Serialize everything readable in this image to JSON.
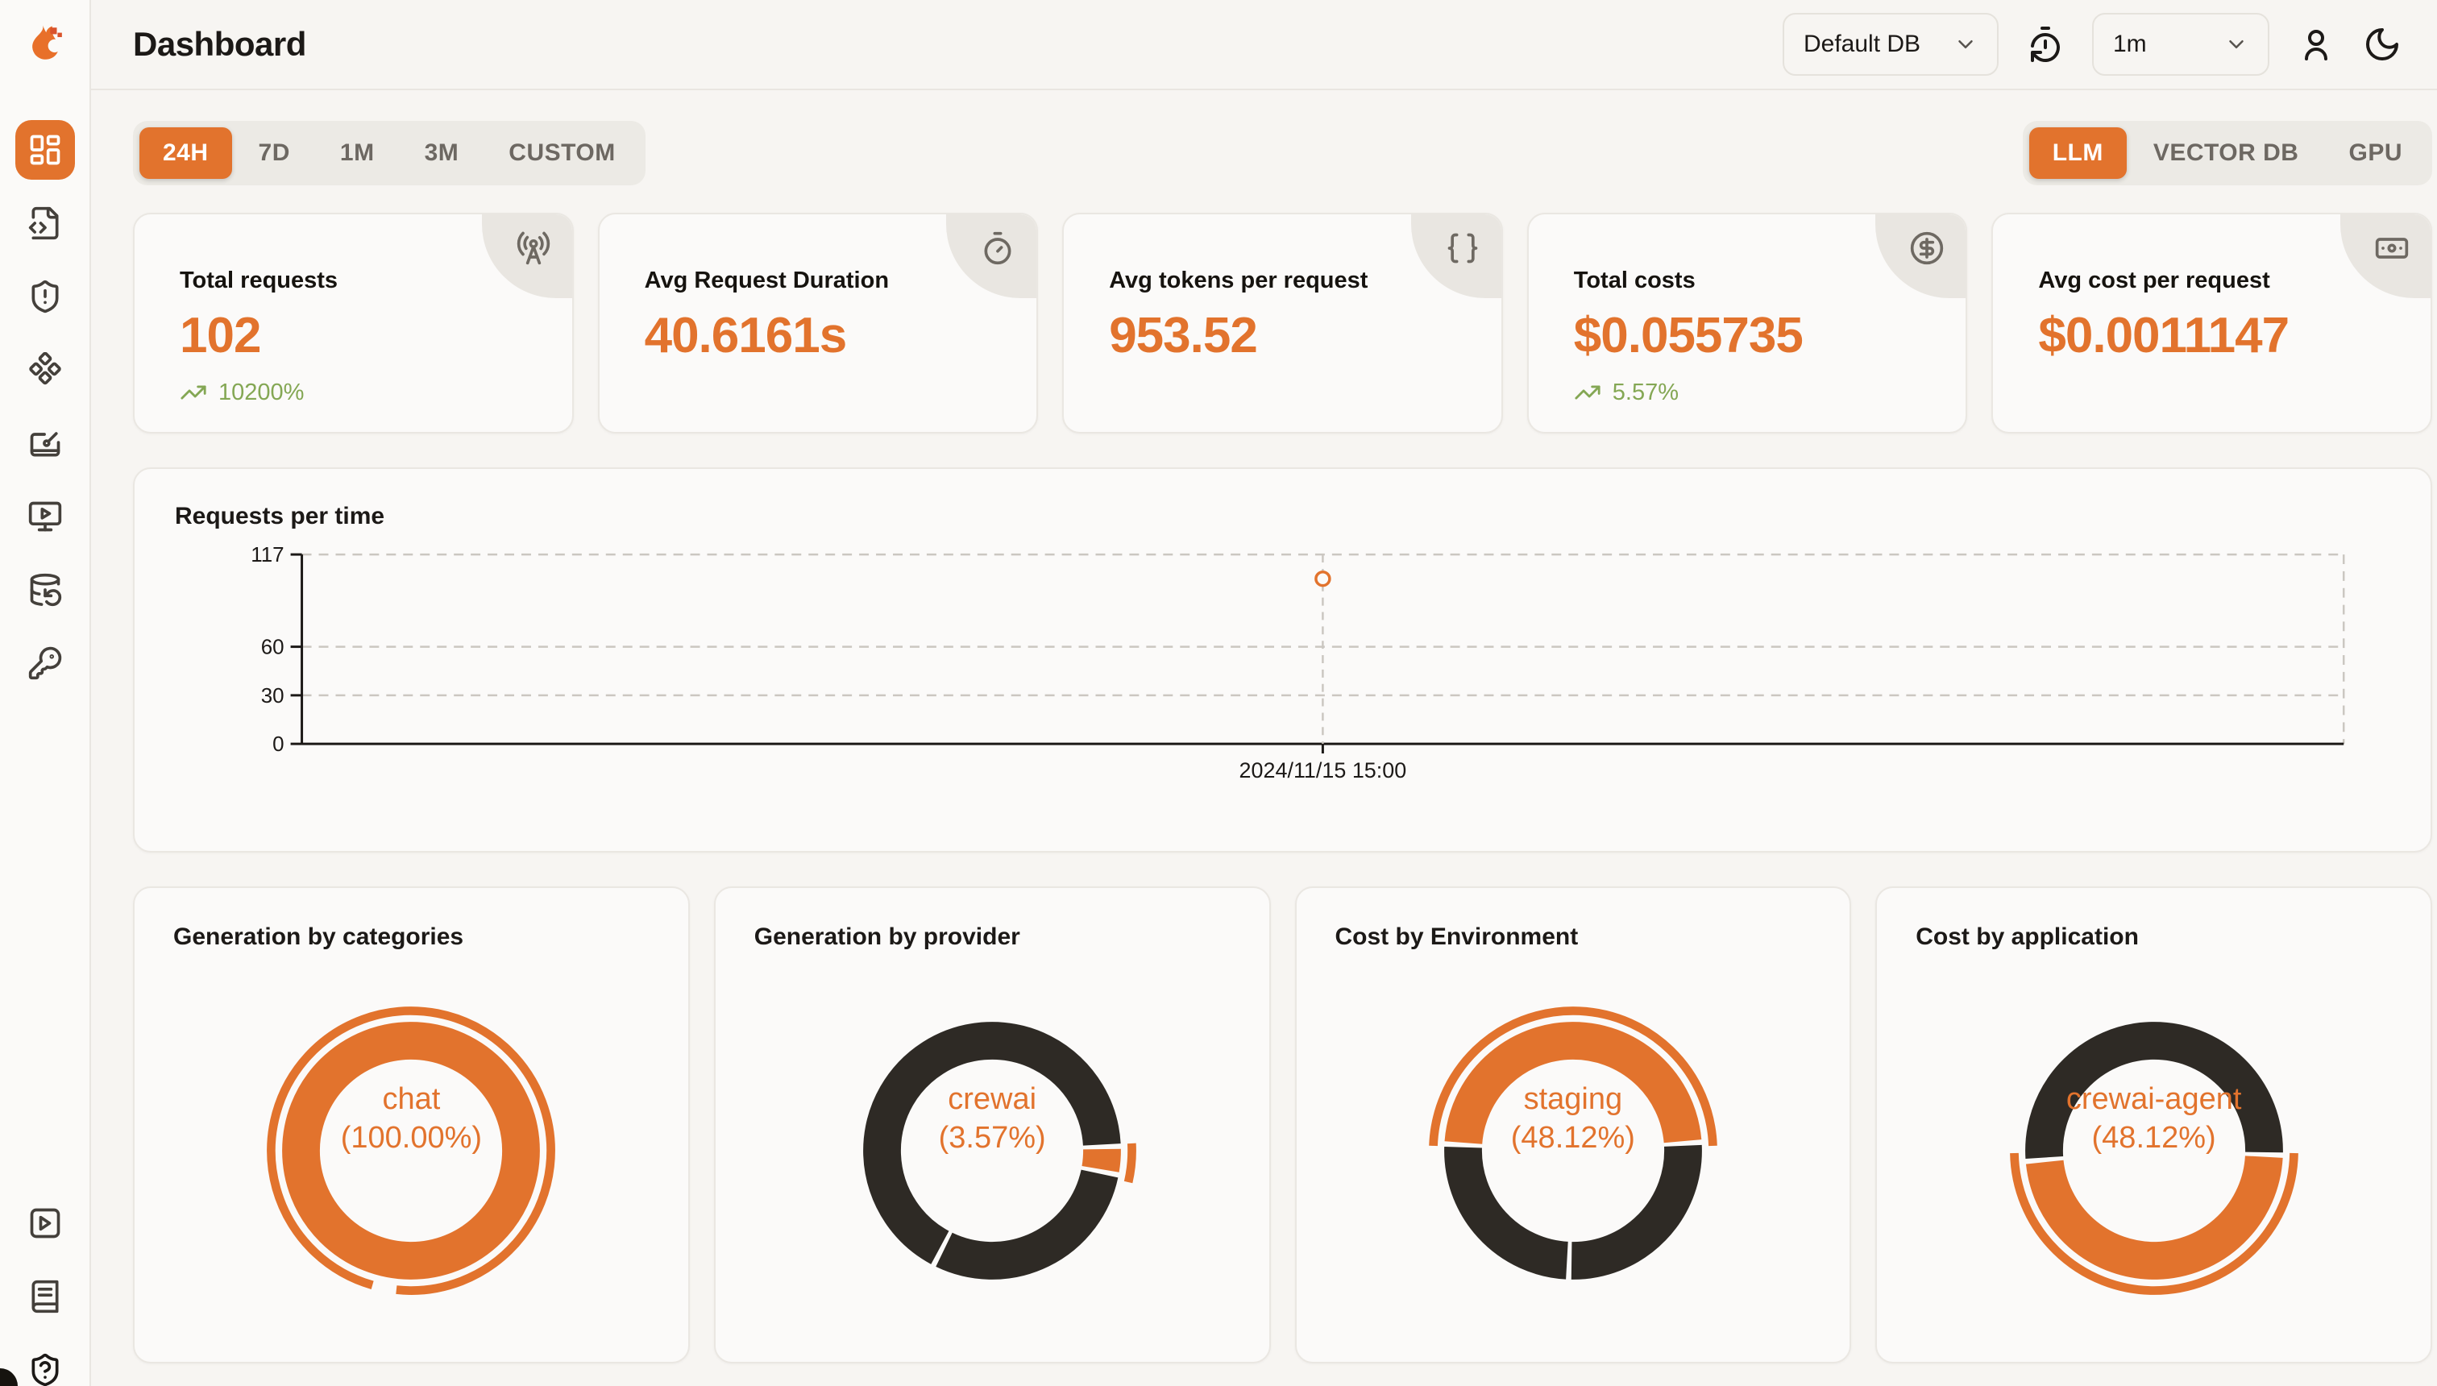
{
  "header": {
    "title": "Dashboard"
  },
  "topbar": {
    "db_select": {
      "value": "Default DB"
    },
    "interval_select": {
      "value": "1m"
    }
  },
  "time_tabs": {
    "items": [
      "24H",
      "7D",
      "1M",
      "3M",
      "CUSTOM"
    ],
    "active": "24H"
  },
  "mode_tabs": {
    "items": [
      "LLM",
      "VECTOR DB",
      "GPU"
    ],
    "active": "LLM"
  },
  "metrics": [
    {
      "label": "Total requests",
      "value": "102",
      "delta": "10200%",
      "icon": "radio-tower"
    },
    {
      "label": "Avg Request Duration",
      "value": "40.6161s",
      "icon": "timer"
    },
    {
      "label": "Avg tokens per request",
      "value": "953.52",
      "icon": "braces"
    },
    {
      "label": "Total costs",
      "value": "$0.055735",
      "delta": "5.57%",
      "icon": "circle-dollar-sign"
    },
    {
      "label": "Avg cost per request",
      "value": "$0.0011147",
      "icon": "banknote"
    }
  ],
  "chart_data": [
    {
      "type": "line",
      "title": "Requests per time",
      "xlabel": "",
      "ylabel": "",
      "ylim": [
        0,
        117
      ],
      "yticks": [
        0,
        30,
        60,
        117
      ],
      "grid": "dashed-horizontal",
      "point_style": "open-circle",
      "points": [
        {
          "x_label": "2024/11/15 15:00",
          "x_frac": 0.5,
          "y": 102
        }
      ]
    },
    {
      "type": "pie",
      "title": "Generation by categories",
      "center_label_line1": "chat",
      "center_label_line2": "(100.00%)",
      "rotation": 0,
      "slices": [
        {
          "label": "chat",
          "pct": 100,
          "color": "orange",
          "highlighted": true
        }
      ],
      "highlight_arc": {
        "start": 196,
        "span": 350
      }
    },
    {
      "type": "pie",
      "title": "Generation by provider",
      "center_label_line1": "crewai",
      "center_label_line2": "(3.57%)",
      "rotation": 88,
      "slices": [
        {
          "label": "crewai",
          "pct": 3.57,
          "color": "orange",
          "highlighted": true
        },
        {
          "label": "",
          "pct": 29.5,
          "color": "dark"
        },
        {
          "label": "",
          "pct": 66.93,
          "color": "dark"
        }
      ],
      "highlight_arc": {
        "start": 87,
        "span": 16
      }
    },
    {
      "type": "pie",
      "title": "Cost by Environment",
      "center_label_line1": "staging",
      "center_label_line2": "(48.12%)",
      "rotation": 273,
      "slices": [
        {
          "label": "staging",
          "pct": 48.12,
          "color": "orange",
          "highlighted": true
        },
        {
          "label": "",
          "pct": 26.6,
          "color": "dark"
        },
        {
          "label": "",
          "pct": 25.28,
          "color": "dark"
        }
      ],
      "highlight_arc": {
        "start": 272,
        "span": 176
      }
    },
    {
      "type": "pie",
      "title": "Cost by application",
      "center_label_line1": "crewai-agent",
      "center_label_line2": "(48.12%)",
      "rotation": 92,
      "slices": [
        {
          "label": "crewai-agent",
          "pct": 48.12,
          "color": "orange",
          "highlighted": true
        },
        {
          "label": "",
          "pct": 51.88,
          "color": "dark"
        }
      ],
      "highlight_arc": {
        "start": 91,
        "span": 178
      }
    }
  ],
  "colors": {
    "accent": "#e2732d",
    "accent_deep": "#d9532b",
    "dark_slice": "#2e2a25",
    "green": "#84a754",
    "grid": "#cbc7c1",
    "axis": "#1c1917",
    "card_bg": "#fbfaf9"
  }
}
